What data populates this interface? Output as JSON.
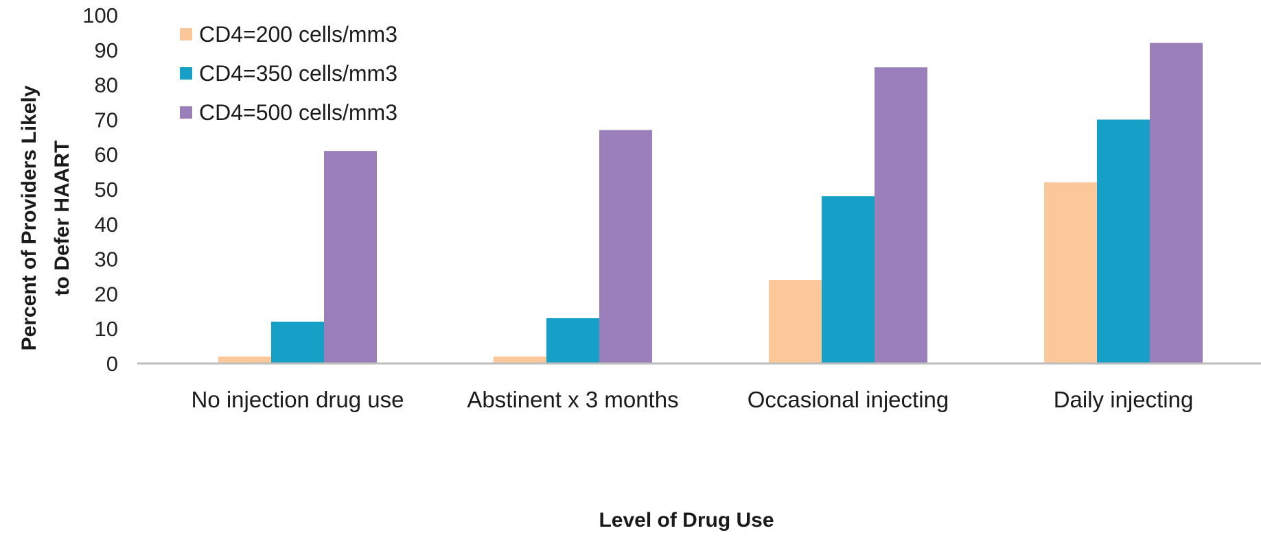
{
  "chart_data": {
    "type": "bar",
    "title": "",
    "xlabel": "Level of Drug Use",
    "ylabel_lines": [
      "Percent of Providers Likely",
      "to Defer HAART"
    ],
    "ylim": [
      0,
      100
    ],
    "yticks": [
      0,
      10,
      20,
      30,
      40,
      50,
      60,
      70,
      80,
      90,
      100
    ],
    "grid": false,
    "legend_position": "top-left",
    "categories": [
      "No injection drug use",
      "Abstinent x 3 months",
      "Occasional injecting",
      "Daily injecting"
    ],
    "series": [
      {
        "name": "CD4=200 cells/mm3",
        "color": "#fcc89a",
        "values": [
          2,
          2,
          24,
          52
        ]
      },
      {
        "name": "CD4=350 cells/mm3",
        "color": "#16a0c8",
        "values": [
          12,
          13,
          48,
          70
        ]
      },
      {
        "name": "CD4=500 cells/mm3",
        "color": "#9b7fba",
        "values": [
          61,
          67,
          85,
          92
        ]
      }
    ]
  }
}
